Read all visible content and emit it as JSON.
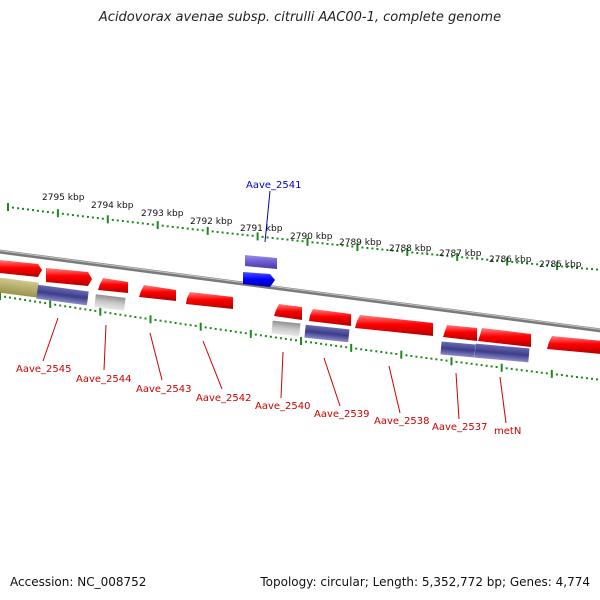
{
  "title": "Acidovorax avenae subsp. citrulli AAC00-1, complete genome",
  "accession_text": "Accession: NC_008752",
  "summary_text": "Topology: circular; Length: 5,352,772 bp; Genes: 4,774",
  "colors": {
    "backbone": "#8a8a8a",
    "ticks": "#1a8a1a",
    "gene_red": "#ff0000",
    "gene_navy": "#3c3c8c",
    "gene_gray": "#b8b8b8",
    "gene_olive": "#b5ad6a",
    "gene_purple": "#6a5acd",
    "gene_blue": "#0000ff",
    "label_red": "#cc0000",
    "label_blue": "#0000cc"
  },
  "scale_labels": [
    "2795 kbp",
    "2794 kbp",
    "2793 kbp",
    "2792 kbp",
    "2791 kbp",
    "2790 kbp",
    "2789 kbp",
    "2788 kbp",
    "2787 kbp",
    "2786 kbp",
    "2785 kbp"
  ],
  "gene_labels": [
    {
      "text": "Aave_2541",
      "color": "label_blue"
    },
    {
      "text": "Aave_2545",
      "color": "label_red"
    },
    {
      "text": "Aave_2544",
      "color": "label_red"
    },
    {
      "text": "Aave_2543",
      "color": "label_red"
    },
    {
      "text": "Aave_2542",
      "color": "label_red"
    },
    {
      "text": "Aave_2540",
      "color": "label_red"
    },
    {
      "text": "Aave_2539",
      "color": "label_red"
    },
    {
      "text": "Aave_2538",
      "color": "label_red"
    },
    {
      "text": "Aave_2537",
      "color": "label_red"
    },
    {
      "text": "metN",
      "color": "label_red"
    }
  ]
}
